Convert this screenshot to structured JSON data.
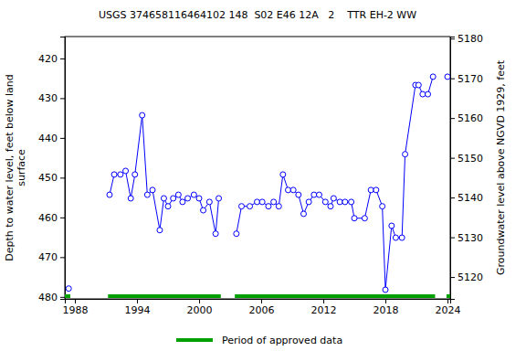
{
  "chart_data": {
    "type": "line",
    "title": "USGS 374658116464102 148  S02 E46 12A   2    TTR EH-2 WW",
    "y_label": [
      "Depth to water level, feet below land",
      "surface"
    ],
    "y2_label": "Groundwater level above NGVD 1929, feet",
    "x": [
      1987.4,
      1989.5,
      1991.35,
      1991.8,
      1992.4,
      1992.9,
      1993.4,
      1993.8,
      1994.5,
      1995.0,
      1995.5,
      1996.2,
      1996.6,
      1997.0,
      1997.5,
      1998.0,
      1998.4,
      1998.9,
      1999.5,
      2000.0,
      2000.4,
      2001.0,
      2001.6,
      2001.9,
      2002.8,
      2003.6,
      2004.1,
      2004.9,
      2005.6,
      2006.1,
      2006.7,
      2007.2,
      2007.7,
      2008.1,
      2008.6,
      2009.1,
      2009.6,
      2010.1,
      2010.6,
      2011.1,
      2011.6,
      2012.2,
      2012.7,
      2013.0,
      2013.6,
      2014.1,
      2014.7,
      2015.0,
      2016.0,
      2016.6,
      2017.1,
      2017.7,
      2018.0,
      2018.6,
      2019.0,
      2019.6,
      2019.9,
      2020.9,
      2021.2,
      2021.6,
      2022.1,
      2022.6,
      2023.3,
      2024.0
    ],
    "series": [
      {
        "color": "#0000ff",
        "marker": "circle",
        "line_style": "solid",
        "axis": "y",
        "values": [
          477.9,
          null,
          454.3,
          449.2,
          449.2,
          448.3,
          455.2,
          449.2,
          434.3,
          454.3,
          453.1,
          463.2,
          455.2,
          457.2,
          455.2,
          454.3,
          456.1,
          455.2,
          454.3,
          455.2,
          458.2,
          456.1,
          464.1,
          455.2,
          null,
          464.1,
          457.2,
          457.2,
          456.1,
          456.1,
          457.2,
          456.1,
          457.2,
          449.2,
          453.1,
          453.1,
          454.3,
          459.1,
          456.1,
          454.3,
          454.3,
          456.1,
          457.2,
          455.2,
          456.1,
          456.1,
          456.1,
          460.2,
          460.2,
          453.1,
          453.1,
          457.2,
          478.2,
          462.1,
          465.1,
          465.1,
          444.1,
          426.7,
          426.7,
          429.0,
          429.0,
          424.6,
          null,
          424.6
        ]
      }
    ],
    "periods": {
      "name": "Period of approved data",
      "color": "#00a000",
      "ranges": [
        [
          1987.03,
          1987.56
        ],
        [
          1991.2,
          2002.1
        ],
        [
          2003.45,
          2022.8
        ],
        [
          2023.9,
          2024.26
        ]
      ]
    },
    "legend": "bottom",
    "grid": false,
    "xlim": [
      1987.03,
      2024.26
    ],
    "xticks": [
      1988,
      1994,
      2000,
      2006,
      2012,
      2018,
      2024
    ],
    "ylim": [
      414.5,
      480.5
    ],
    "yticks": [
      420,
      430,
      440,
      450,
      460,
      470,
      480
    ],
    "y2lim": [
      5180.5,
      5114.5
    ],
    "y2ticks": [
      5120,
      5130,
      5140,
      5150,
      5160,
      5170,
      5180
    ]
  }
}
